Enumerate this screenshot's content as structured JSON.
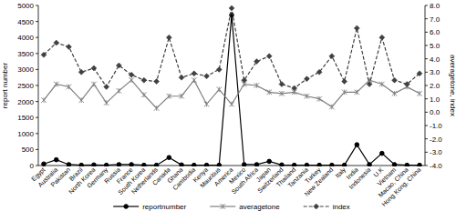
{
  "chart_data": {
    "type": "line",
    "categories": [
      "Egypt",
      "Australia",
      "Pakistan",
      "Brazil",
      "North Korea",
      "Germany",
      "Russia",
      "France",
      "South Korea",
      "Netherlands",
      "Canada",
      "Ghana",
      "Cambodia",
      "Kenya",
      "Mauritius",
      "America",
      "Mexico",
      "South Africa",
      "Japan",
      "Switzerland",
      "Thailand",
      "Tanzania",
      "Turkey",
      "New Zealand",
      "Italy",
      "India",
      "Indonesia",
      "U.K",
      "Vietnam",
      "Macao, China",
      "Hong Kong, China"
    ],
    "series": [
      {
        "name": "reportnumber",
        "color": "#000000",
        "marker": "circle",
        "line_style": "solid",
        "values": [
          50,
          180,
          30,
          10,
          20,
          10,
          30,
          30,
          10,
          10,
          250,
          20,
          10,
          10,
          10,
          4700,
          30,
          30,
          130,
          20,
          10,
          10,
          10,
          10,
          10,
          650,
          30,
          380,
          30,
          10,
          10
        ]
      },
      {
        "name": "averagetone",
        "color": "#808080",
        "marker": "x",
        "line_style": "solid",
        "axis": "y2",
        "values": [
          0.9,
          2.1,
          1.9,
          0.9,
          2.1,
          0.7,
          1.6,
          2.4,
          1.3,
          0.3,
          1.2,
          1.2,
          2.4,
          0.6,
          1.7,
          0.6,
          2.1,
          2.0,
          1.5,
          1.4,
          1.5,
          1.2,
          1.0,
          0.4,
          1.5,
          1.5,
          2.4,
          2.1,
          1.4,
          1.9,
          1.4
        ]
      },
      {
        "name": "index",
        "color": "#404040",
        "marker": "diamond",
        "line_style": "dashed",
        "axis": "y2",
        "values": [
          4.3,
          5.2,
          4.9,
          3.0,
          3.3,
          1.9,
          3.5,
          2.8,
          2.4,
          2.3,
          5.6,
          2.6,
          2.9,
          2.7,
          3.2,
          7.8,
          2.4,
          3.8,
          4.2,
          2.1,
          1.8,
          2.5,
          3.0,
          4.2,
          2.3,
          6.3,
          2.1,
          5.6,
          2.4,
          2.1,
          2.9
        ]
      }
    ],
    "y_label": "report number",
    "y2_label": "averagetone, index",
    "ylim": [
      0,
      5000
    ],
    "yticks": [
      0,
      500,
      1000,
      1500,
      2000,
      2500,
      3000,
      3500,
      4000,
      4500,
      5000
    ],
    "y2lim": [
      -4,
      8
    ],
    "y2ticks": [
      {
        "value": -4,
        "label": "-4.0"
      },
      {
        "value": -3,
        "label": "-3.0"
      },
      {
        "value": -2,
        "label": "-2.0"
      },
      {
        "value": -1,
        "label": "-1.0"
      },
      {
        "value": 0,
        "label": "0.0"
      },
      {
        "value": 1,
        "label": "1.0"
      },
      {
        "value": 2,
        "label": "2.0"
      },
      {
        "value": 3,
        "label": "3.0"
      },
      {
        "value": 4,
        "label": "4.0"
      },
      {
        "value": 5,
        "label": "5.0"
      },
      {
        "value": 6,
        "label": "6.0"
      },
      {
        "value": 7,
        "label": "7.0"
      },
      {
        "value": 8,
        "label": "8.0"
      }
    ],
    "grid": false,
    "legend": "bottom"
  }
}
